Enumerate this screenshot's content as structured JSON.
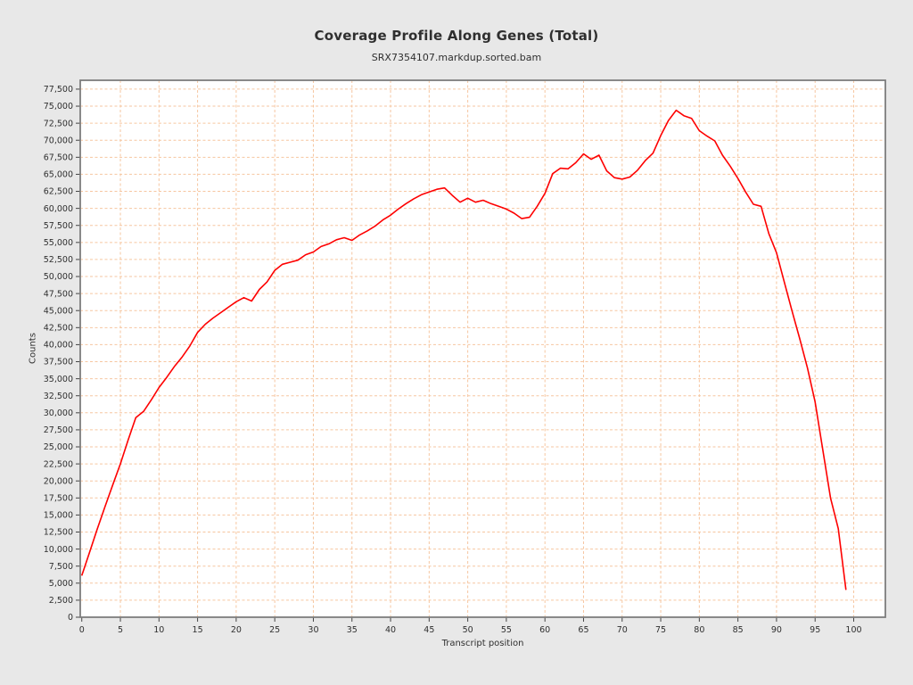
{
  "page": {
    "background": "#e8e8e8",
    "text_color": "#2f2f2f"
  },
  "chart_data": {
    "type": "line",
    "title": "Coverage Profile Along Genes (Total)",
    "subtitle": "SRX7354107.markdup.sorted.bam",
    "xlabel": "Transcript position",
    "ylabel": "Counts",
    "legend": [],
    "grid": true,
    "x": [
      0,
      1,
      2,
      3,
      4,
      5,
      6,
      7,
      8,
      9,
      10,
      11,
      12,
      13,
      14,
      15,
      16,
      17,
      18,
      19,
      20,
      21,
      22,
      23,
      24,
      25,
      26,
      27,
      28,
      29,
      30,
      31,
      32,
      33,
      34,
      35,
      36,
      37,
      38,
      39,
      40,
      41,
      42,
      43,
      44,
      45,
      46,
      47,
      48,
      49,
      50,
      51,
      52,
      53,
      54,
      55,
      56,
      57,
      58,
      59,
      60,
      61,
      62,
      63,
      64,
      65,
      66,
      67,
      68,
      69,
      70,
      71,
      72,
      73,
      74,
      75,
      76,
      77,
      78,
      79,
      80,
      81,
      82,
      83,
      84,
      85,
      86,
      87,
      88,
      89,
      90,
      91,
      92,
      93,
      94,
      95,
      96,
      97,
      98,
      99
    ],
    "values": [
      6100,
      9500,
      12900,
      16200,
      19400,
      22500,
      26000,
      29300,
      30200,
      31900,
      33700,
      35200,
      36800,
      38200,
      39800,
      41800,
      43000,
      43900,
      44700,
      45500,
      46300,
      46900,
      46400,
      48100,
      49200,
      50900,
      51800,
      52100,
      52400,
      53200,
      53600,
      54400,
      54800,
      55400,
      55700,
      55300,
      56100,
      56700,
      57400,
      58300,
      59000,
      59900,
      60700,
      61400,
      62000,
      62400,
      62800,
      63000,
      61900,
      60900,
      61500,
      60900,
      61200,
      60700,
      60300,
      59900,
      59300,
      58500,
      58700,
      60300,
      62200,
      65100,
      65900,
      65800,
      66700,
      68000,
      67200,
      67800,
      65500,
      64500,
      64300,
      64600,
      65600,
      67000,
      68100,
      70700,
      72900,
      74400,
      73600,
      73200,
      71400,
      70600,
      69900,
      67800,
      66200,
      64400,
      62400,
      60600,
      60300,
      56300,
      53500,
      49200,
      45000,
      40900,
      36600,
      31600,
      24500,
      17500,
      13000,
      4000
    ],
    "xlim": [
      -0.2,
      104.1
    ],
    "ylim": [
      0,
      78800
    ],
    "x_tick_min": 0,
    "x_tick_max": 100,
    "x_tick_step": 5,
    "y_tick_min": 0,
    "y_tick_max": 77500,
    "y_tick_step": 2500,
    "line_color": "#fe0000",
    "grid_color": "#f6c6a0",
    "plot_bg": "#ffffff",
    "border_color": "#7d7d7d",
    "tick_color": "#444444"
  }
}
